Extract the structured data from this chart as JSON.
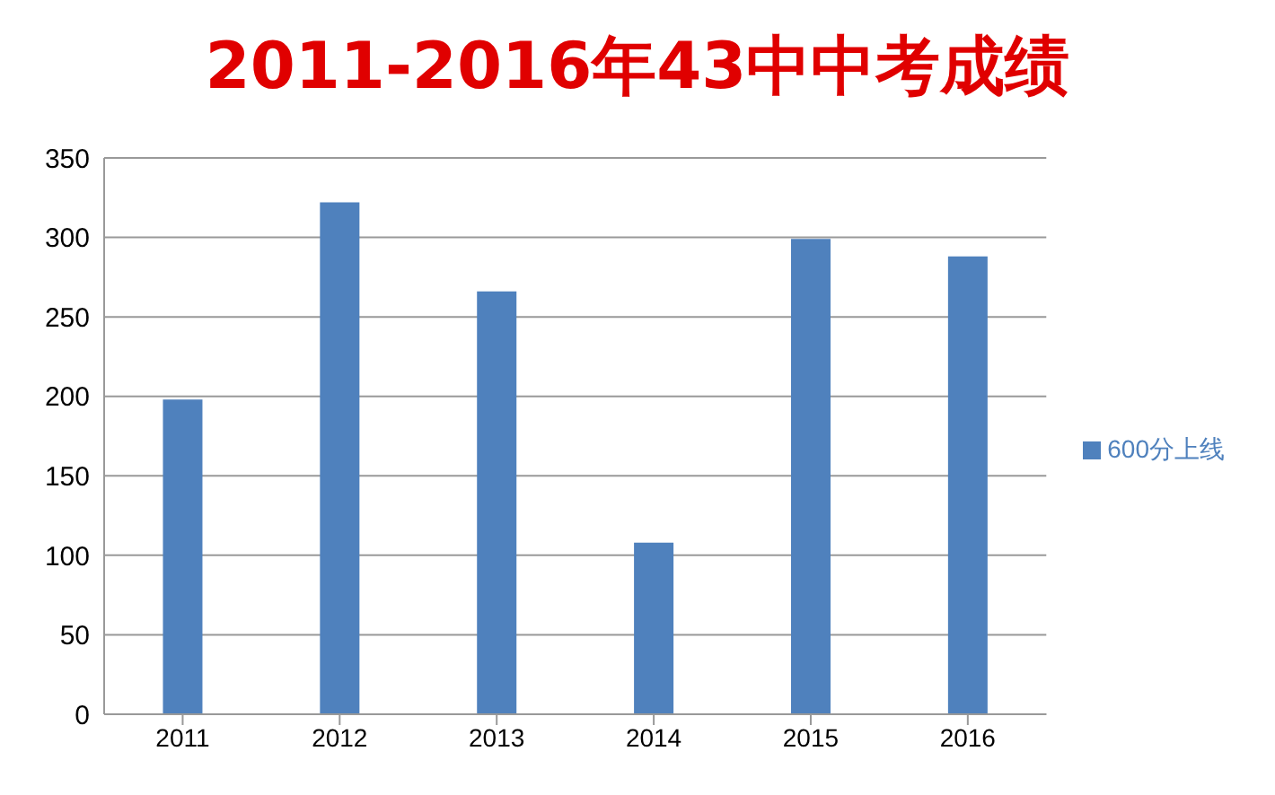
{
  "chart_data": {
    "type": "bar",
    "title": "2011-2016年43中中考成绩",
    "categories": [
      "2011",
      "2012",
      "2013",
      "2014",
      "2015",
      "2016"
    ],
    "series": [
      {
        "name": "600分上线",
        "color": "#4f81bd",
        "values": [
          198,
          322,
          266,
          108,
          299,
          288
        ]
      }
    ],
    "ylim": [
      0,
      350
    ],
    "yticks": [
      0,
      50,
      100,
      150,
      200,
      250,
      300,
      350
    ],
    "grid": "y",
    "legend": "right"
  }
}
